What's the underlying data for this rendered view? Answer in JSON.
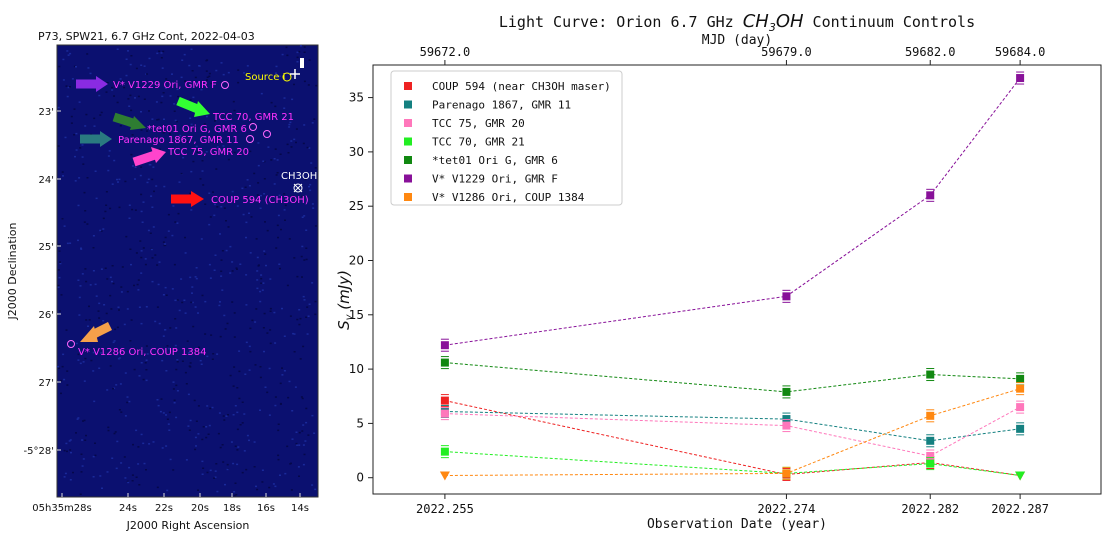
{
  "image_panel": {
    "title": "P73, SPW21, 6.7 GHz Cont, 2022-04-03",
    "x_label": "J2000 Right Ascension",
    "y_label": "J2000 Declination",
    "x_ticks": [
      "05h35m28s",
      "24s",
      "22s",
      "20s",
      "18s",
      "16s",
      "14s"
    ],
    "y_ticks": [
      "23'",
      "24'",
      "25'",
      "26'",
      "27'",
      "-5°28'"
    ],
    "labels": [
      {
        "text": "V* V1229 Ori, GMR F",
        "color": "#ff33ff",
        "arrow_color": "#8a2be2"
      },
      {
        "text": "TCC 70, GMR 21",
        "color": "#ff33ff",
        "arrow_color": "#33ff33"
      },
      {
        "text": "*tet01 Ori G, GMR 6",
        "color": "#ff33ff",
        "arrow_color": "#2e7d32"
      },
      {
        "text": "Parenago 1867, GMR 11",
        "color": "#ff33ff",
        "arrow_color": "#2a7a80"
      },
      {
        "text": "TCC 75, GMR 20",
        "color": "#ff33ff",
        "arrow_color": "#ff44cc"
      },
      {
        "text": "COUP 594 (CH3OH)",
        "color": "#ff33ff",
        "arrow_color": "#ff1111"
      },
      {
        "text": "V* V1286 Ori, COUP 1384",
        "color": "#ff33ff",
        "arrow_color": "#f5a04a"
      },
      {
        "text": "Source I",
        "color": "#ffff00"
      },
      {
        "text": "CH3OH",
        "color": "#ffffff"
      }
    ]
  },
  "chart_data": {
    "type": "line",
    "title_pre": "Light Curve: Orion 6.7 GHz ",
    "title_chem": "CH",
    "title_sub": "3",
    "title_chem2": "OH",
    "title_post": " Continuum Controls",
    "xlabel": "Observation Date (year)",
    "ylabel_main": "S",
    "ylabel_sub": "v",
    "ylabel_unit": " (mJy)",
    "top_xlabel": "MJD (day)",
    "x": [
      2022.255,
      2022.274,
      2022.282,
      2022.287
    ],
    "x_tick_labels": [
      "2022.255",
      "2022.274",
      "2022.282",
      "2022.287"
    ],
    "top_x_tick_labels": [
      "59672.0",
      "59679.0",
      "59682.0",
      "59684.0"
    ],
    "ylim": [
      -1.5,
      38
    ],
    "y_ticks": [
      0,
      5,
      10,
      15,
      20,
      25,
      30,
      35
    ],
    "legend_position": "top-left",
    "series": [
      {
        "name": "COUP 594 (near CH3OH maser)",
        "color": "#ee2222",
        "values": [
          7.1,
          0.3,
          1.4,
          0.2
        ],
        "markers": [
          "s",
          "s",
          "s",
          "v"
        ]
      },
      {
        "name": "Parenago 1867, GMR 11",
        "color": "#148080",
        "values": [
          6.1,
          5.4,
          3.4,
          4.5
        ],
        "markers": [
          "s",
          "s",
          "s",
          "s"
        ]
      },
      {
        "name": "TCC 75, GMR 20",
        "color": "#ff77bb",
        "values": [
          5.9,
          4.8,
          2.0,
          6.5
        ],
        "markers": [
          "s",
          "s",
          "s",
          "s"
        ]
      },
      {
        "name": "TCC 70, GMR 21",
        "color": "#22ee22",
        "values": [
          2.4,
          0.4,
          1.3,
          0.2
        ],
        "markers": [
          "s",
          "s",
          "s",
          "v"
        ]
      },
      {
        "name": "*tet01 Ori G, GMR 6",
        "color": "#118811",
        "values": [
          10.6,
          7.9,
          9.5,
          9.1
        ],
        "markers": [
          "s",
          "s",
          "s",
          "s"
        ]
      },
      {
        "name": "V* V1229 Ori, GMR F",
        "color": "#881199",
        "values": [
          12.2,
          16.7,
          26.0,
          36.8
        ],
        "markers": [
          "s",
          "s",
          "s",
          "s"
        ]
      },
      {
        "name": "V* V1286 Ori, COUP 1384",
        "color": "#ff8811",
        "values": [
          0.2,
          0.4,
          5.7,
          8.2
        ],
        "markers": [
          "v",
          "s",
          "s",
          "s"
        ]
      }
    ]
  }
}
